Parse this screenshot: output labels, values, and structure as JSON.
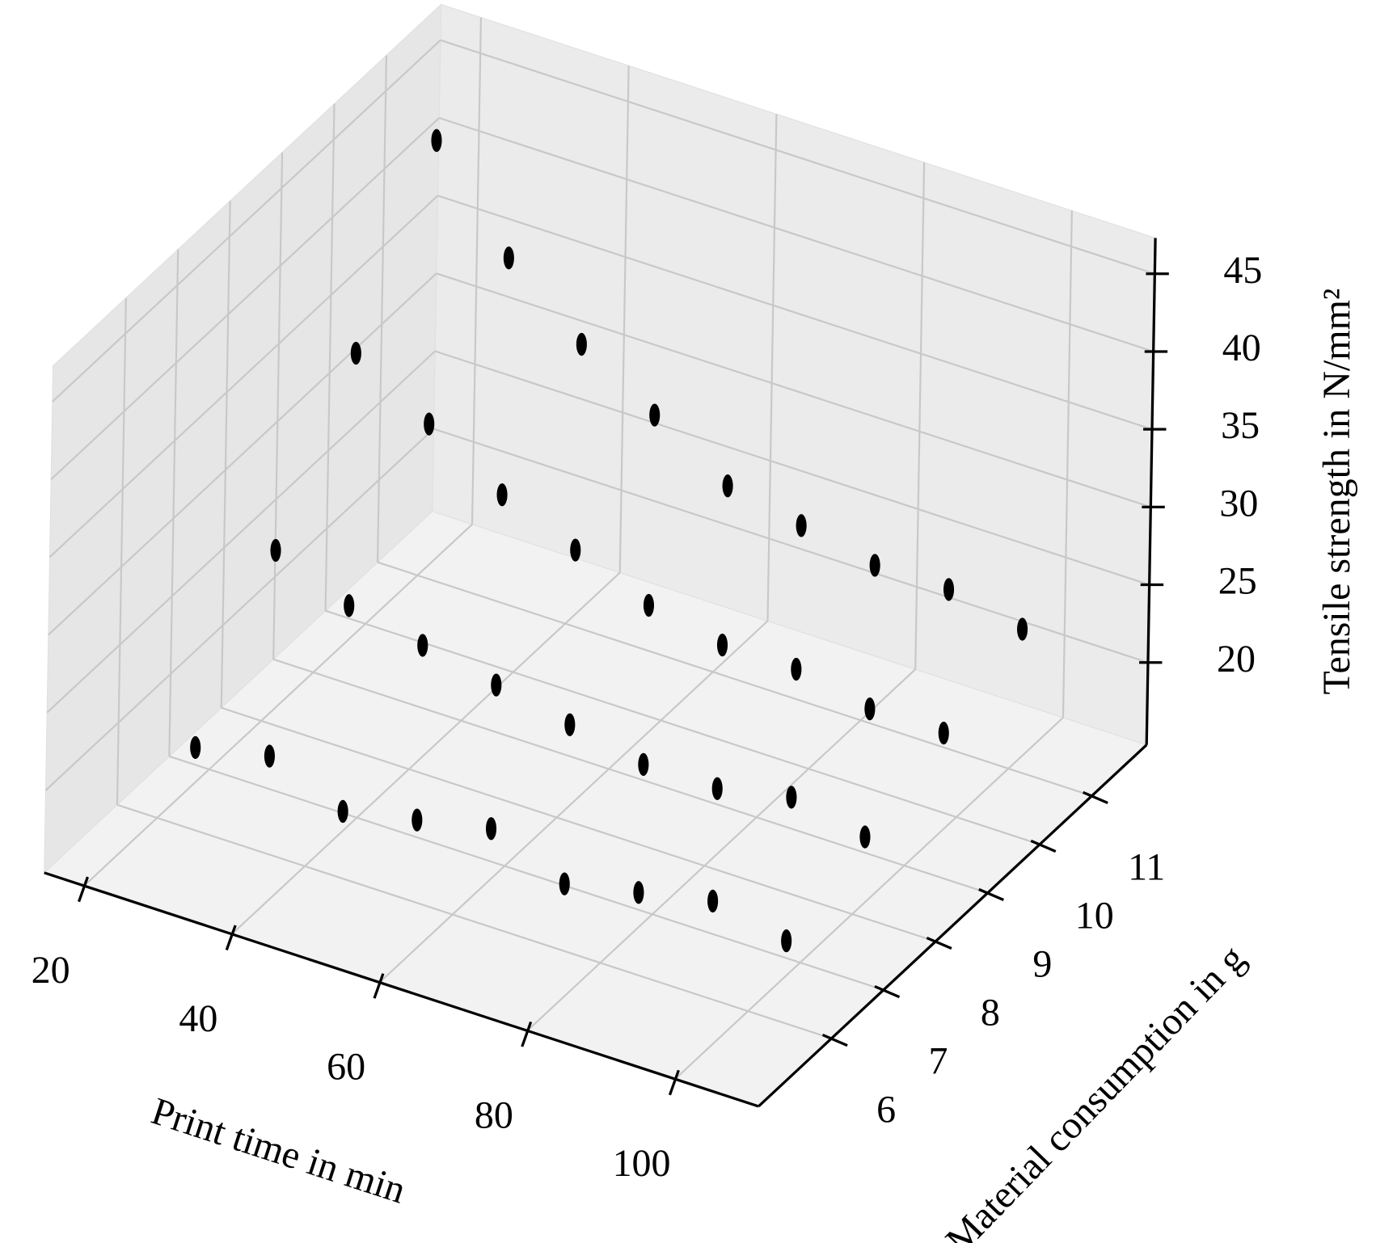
{
  "chart_data": {
    "type": "scatter3d",
    "xlabel": "Print time in min",
    "ylabel": "Material consumption in g",
    "zlabel": "Tensile strength in N/mm²",
    "xlim": [
      14.6,
      111.3
    ],
    "ylim": [
      4.6,
      12.05
    ],
    "zlim": [
      14.7,
      47.3
    ],
    "xticks": [
      20,
      40,
      60,
      80,
      100
    ],
    "yticks": [
      6,
      7,
      8,
      9,
      10,
      11
    ],
    "zticks": [
      20,
      25,
      30,
      35,
      40,
      45
    ],
    "color": "#000000",
    "grid": true,
    "x": [
      25,
      35,
      45,
      55,
      65,
      75,
      85,
      95,
      105,
      25,
      35,
      45,
      55,
      65,
      75,
      85,
      95,
      105,
      25,
      35,
      45,
      55,
      65,
      75,
      85,
      95,
      105,
      25,
      35,
      45,
      55,
      65,
      75,
      85,
      95,
      105
    ],
    "y": [
      6,
      6,
      6,
      6,
      6,
      6,
      6,
      6,
      6,
      7.5,
      7.5,
      7.5,
      7.5,
      7.5,
      7.5,
      7.5,
      7.5,
      7.5,
      9,
      9,
      9,
      9,
      9,
      9,
      9,
      9,
      9,
      10.5,
      10.5,
      10.5,
      10.5,
      10.5,
      10.5,
      10.5,
      10.5,
      10.5
    ],
    "z": [
      20,
      21,
      19,
      20,
      21,
      19,
      20,
      21,
      20,
      28,
      26,
      25,
      24,
      23,
      22,
      22,
      23,
      22,
      36,
      33,
      30,
      28,
      26,
      25,
      25,
      24,
      24,
      45,
      39,
      35,
      32,
      29,
      28,
      27,
      27,
      26
    ]
  }
}
